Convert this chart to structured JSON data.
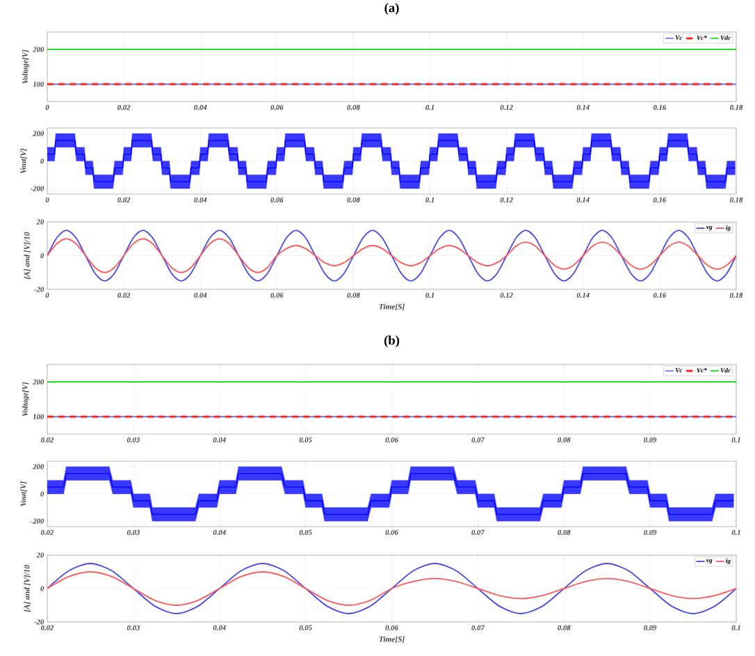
{
  "chart_data": [
    {
      "type": "line",
      "title": "(a)",
      "ylabel": "Voltage[V]",
      "x": [
        0,
        0.18
      ],
      "xlim": [
        0,
        0.18
      ],
      "xticks": [
        0,
        0.02,
        0.04,
        0.06,
        0.08,
        0.1,
        0.12,
        0.14,
        0.16,
        0.18
      ],
      "ylim": [
        50,
        250
      ],
      "yticks": [
        100,
        200
      ],
      "grid": true,
      "legend": "top right",
      "series": [
        {
          "name": "Vc",
          "color": "#6a7ff0",
          "values": [
            100,
            100
          ]
        },
        {
          "name": "Vc*",
          "color": "#ff2020",
          "values": [
            100,
            100
          ],
          "line_style": "dashed"
        },
        {
          "name": "Vdc",
          "color": "#22e022",
          "values": [
            200,
            200
          ]
        }
      ]
    },
    {
      "type": "line",
      "ylabel": "Vout[V]",
      "xlim": [
        0,
        0.18
      ],
      "xticks": [
        0,
        0.02,
        0.04,
        0.06,
        0.08,
        0.1,
        0.12,
        0.14,
        0.16,
        0.18
      ],
      "ylim": [
        -240,
        240
      ],
      "yticks": [
        -200,
        0,
        200
      ],
      "grid": true,
      "series": [
        {
          "color": "#0000ff",
          "x": [
            0,
            0.0019,
            0.0022,
            0.0072,
            0.0076,
            0.0097,
            0.01,
            0.0119,
            0.0122,
            0.0172,
            0.0176,
            0.0197,
            0.02,
            0.0219,
            0.0222,
            0.0272,
            0.0276,
            0.0297,
            0.03,
            0.0319,
            0.0322,
            0.0372,
            0.0376,
            0.0397,
            0.04,
            0.0419,
            0.0422,
            0.0472,
            0.0476,
            0.0497,
            0.05,
            0.0519,
            0.0522,
            0.0572,
            0.0576,
            0.0597,
            0.06,
            0.0619,
            0.0622,
            0.0672,
            0.0676,
            0.0697,
            0.07,
            0.0719,
            0.0722,
            0.0772,
            0.0776,
            0.0797,
            0.08,
            0.0819,
            0.0822,
            0.0872,
            0.0876,
            0.0897,
            0.09,
            0.0919,
            0.0922,
            0.0972,
            0.0976,
            0.0997,
            0.1,
            0.1019,
            0.1022,
            0.1072,
            0.1076,
            0.1097,
            0.11,
            0.1119,
            0.1122,
            0.1172,
            0.1176,
            0.1197,
            0.12,
            0.1219,
            0.1222,
            0.1272,
            0.1276,
            0.1297,
            0.13,
            0.1319,
            0.1322,
            0.1372,
            0.1376,
            0.1397,
            0.14,
            0.1419,
            0.1422,
            0.1472,
            0.1476,
            0.1497,
            0.15,
            0.1519,
            0.1522,
            0.1572,
            0.1576,
            0.1597,
            0.16,
            0.1619,
            0.1622,
            0.1672,
            0.1676,
            0.1697,
            0.17,
            0.1719,
            0.1722,
            0.1772,
            0.1776,
            0.1797
          ],
          "values": [
            50,
            50,
            150,
            150,
            50,
            50,
            -50,
            -50,
            -150,
            -150,
            -50,
            -50,
            50,
            50,
            150,
            150,
            50,
            50,
            -50,
            -50,
            -150,
            -150,
            -50,
            -50,
            50,
            50,
            150,
            150,
            50,
            50,
            -50,
            -50,
            -150,
            -150,
            -50,
            -50,
            50,
            50,
            150,
            150,
            50,
            50,
            -50,
            -50,
            -150,
            -150,
            -50,
            -50,
            50,
            50,
            150,
            150,
            50,
            50,
            -50,
            -50,
            -150,
            -150,
            -50,
            -50,
            50,
            50,
            150,
            150,
            50,
            50,
            -50,
            -50,
            -150,
            -150,
            -50,
            -50,
            50,
            50,
            150,
            150,
            50,
            50,
            -50,
            -50,
            -150,
            -150,
            -50,
            -50,
            50,
            50,
            150,
            150,
            50,
            50,
            -50,
            -50,
            -150,
            -150,
            -50,
            -50,
            50,
            50,
            150,
            150,
            50,
            50,
            -50,
            -50,
            -150,
            -150,
            -50,
            -50
          ],
          "lower": [
            0,
            0,
            100,
            100,
            0,
            0,
            -100,
            -100,
            -200,
            -200,
            -100,
            -100,
            0,
            0,
            100,
            100,
            0,
            0,
            -100,
            -100,
            -200,
            -200,
            -100,
            -100,
            0,
            0,
            100,
            100,
            0,
            0,
            -100,
            -100,
            -200,
            -200,
            -100,
            -100,
            0,
            0,
            100,
            100,
            0,
            0,
            -100,
            -100,
            -200,
            -200,
            -100,
            -100,
            0,
            0,
            100,
            100,
            0,
            0,
            -100,
            -100,
            -200,
            -200,
            -100,
            -100,
            0,
            0,
            100,
            100,
            0,
            0,
            -100,
            -100,
            -200,
            -200,
            -100,
            -100,
            0,
            0,
            100,
            100,
            0,
            0,
            -100,
            -100,
            -200,
            -200,
            -100,
            -100,
            0,
            0,
            100,
            100,
            0,
            0,
            -100,
            -100,
            -200,
            -200,
            -100,
            -100,
            0,
            0,
            100,
            100,
            0,
            0,
            -100,
            -100,
            -200,
            -200,
            -100,
            -100
          ],
          "upper": [
            100,
            100,
            200,
            200,
            100,
            100,
            0,
            0,
            -100,
            -100,
            0,
            0,
            100,
            100,
            200,
            200,
            100,
            100,
            0,
            0,
            -100,
            -100,
            0,
            0,
            100,
            100,
            200,
            200,
            100,
            100,
            0,
            0,
            -100,
            -100,
            0,
            0,
            100,
            100,
            200,
            200,
            100,
            100,
            0,
            0,
            -100,
            -100,
            0,
            0,
            100,
            100,
            200,
            200,
            100,
            100,
            0,
            0,
            -100,
            -100,
            0,
            0,
            100,
            100,
            200,
            200,
            100,
            100,
            0,
            0,
            -100,
            -100,
            0,
            0,
            100,
            100,
            200,
            200,
            100,
            100,
            0,
            0,
            -100,
            -100,
            0,
            0,
            100,
            100,
            200,
            200,
            100,
            100,
            0,
            0,
            -100,
            -100,
            0,
            0,
            100,
            100,
            200,
            200,
            100,
            100,
            0,
            0,
            -100,
            -100,
            0,
            0
          ]
        }
      ]
    },
    {
      "type": "line",
      "xlabel": "Time[S]",
      "ylabel": "[A] and [V]/10",
      "xlim": [
        0,
        0.18
      ],
      "xticks": [
        0,
        0.02,
        0.04,
        0.06,
        0.08,
        0.1,
        0.12,
        0.14,
        0.16,
        0.18
      ],
      "ylim": [
        -20,
        20
      ],
      "yticks": [
        -20,
        0,
        20
      ],
      "grid": true,
      "legend": "top right",
      "x": [
        0,
        0.0025,
        0.005,
        0.0075,
        0.01,
        0.0125,
        0.015,
        0.0175,
        0.02,
        0.0225,
        0.025,
        0.0275,
        0.03,
        0.0325,
        0.035,
        0.0375,
        0.04,
        0.0425,
        0.045,
        0.0475,
        0.05,
        0.0525,
        0.055,
        0.0575,
        0.06,
        0.0625,
        0.065,
        0.0675,
        0.07,
        0.0725,
        0.075,
        0.0775,
        0.08,
        0.0825,
        0.085,
        0.0875,
        0.09,
        0.0925,
        0.095,
        0.0975,
        0.1,
        0.1025,
        0.105,
        0.1075,
        0.11,
        0.1125,
        0.115,
        0.1175,
        0.12,
        0.1225,
        0.125,
        0.1275,
        0.13,
        0.1325,
        0.135,
        0.1375,
        0.14,
        0.1425,
        0.145,
        0.1475,
        0.15,
        0.1525,
        0.155,
        0.1575,
        0.16,
        0.1625,
        0.165,
        0.1675,
        0.17,
        0.1725,
        0.175,
        0.1775,
        0.18
      ],
      "series": [
        {
          "name": "vg",
          "color": "#4a4ae6",
          "values": [
            0,
            10.6,
            15,
            10.6,
            0,
            -10.6,
            -15,
            -10.6,
            0,
            10.6,
            15,
            10.6,
            0,
            -10.6,
            -15,
            -10.6,
            0,
            10.6,
            15,
            10.6,
            0,
            -10.6,
            -15,
            -10.6,
            0,
            10.6,
            15,
            10.6,
            0,
            -10.6,
            -15,
            -10.6,
            0,
            10.6,
            15,
            10.6,
            0,
            -10.6,
            -15,
            -10.6,
            0,
            10.6,
            15,
            10.6,
            0,
            -10.6,
            -15,
            -10.6,
            0,
            10.6,
            15,
            10.6,
            0,
            -10.6,
            -15,
            -10.6,
            0,
            10.6,
            15,
            10.6,
            0,
            -10.6,
            -15,
            -10.6,
            0,
            10.6,
            15,
            10.6,
            0,
            -10.6,
            -15,
            -10.6,
            0
          ]
        },
        {
          "name": "ig",
          "color": "#ff5a5a",
          "values": [
            0,
            7.1,
            10,
            7.1,
            0,
            -7.1,
            -10,
            -7.1,
            0,
            7.1,
            10,
            7.1,
            0,
            -7.1,
            -10,
            -7.1,
            0,
            7.1,
            10,
            7.1,
            0,
            -7.1,
            -10,
            -7.1,
            0,
            4.2,
            6,
            4.2,
            0,
            -4.2,
            -6,
            -4.2,
            0,
            4.2,
            6,
            4.2,
            0,
            -4.2,
            -6,
            -4.2,
            0,
            4.2,
            6,
            4.2,
            0,
            -4.2,
            -6,
            -4.2,
            0,
            5.7,
            8,
            5.7,
            0,
            -5.7,
            -8,
            -5.7,
            0,
            5.7,
            8,
            5.7,
            0,
            -5.7,
            -8,
            -5.7,
            0,
            5.7,
            8,
            5.7,
            0,
            -5.7,
            -8,
            -5.7,
            0
          ]
        }
      ]
    },
    {
      "type": "line",
      "title": "(b)",
      "ylabel": "Voltage[V]",
      "x": [
        0.02,
        0.1
      ],
      "xlim": [
        0.02,
        0.1
      ],
      "xticks": [
        0.02,
        0.03,
        0.04,
        0.05,
        0.06,
        0.07,
        0.08,
        0.09,
        0.1
      ],
      "ylim": [
        50,
        250
      ],
      "yticks": [
        100,
        200
      ],
      "grid": true,
      "legend": "top right",
      "series": [
        {
          "name": "Vc",
          "color": "#6a7ff0",
          "values": [
            100,
            100
          ]
        },
        {
          "name": "Vc*",
          "color": "#ff2020",
          "values": [
            100,
            100
          ],
          "line_style": "dashed"
        },
        {
          "name": "Vdc",
          "color": "#22e022",
          "values": [
            200,
            200
          ]
        }
      ]
    },
    {
      "type": "line",
      "ylabel": "Vout[V]",
      "xlim": [
        0.02,
        0.1
      ],
      "xticks": [
        0.02,
        0.03,
        0.04,
        0.05,
        0.06,
        0.07,
        0.08,
        0.09,
        0.1
      ],
      "ylim": [
        -240,
        240
      ],
      "yticks": [
        -200,
        0,
        200
      ],
      "grid": true,
      "series": [
        {
          "color": "#0000ff",
          "x": [
            0.02,
            0.0219,
            0.0222,
            0.0272,
            0.0276,
            0.0297,
            0.03,
            0.0319,
            0.0322,
            0.0372,
            0.0376,
            0.0397,
            0.04,
            0.0419,
            0.0422,
            0.0472,
            0.0476,
            0.0497,
            0.05,
            0.0519,
            0.0522,
            0.0572,
            0.0576,
            0.0597,
            0.06,
            0.0619,
            0.0622,
            0.0672,
            0.0676,
            0.0697,
            0.07,
            0.0719,
            0.0722,
            0.0772,
            0.0776,
            0.0797,
            0.08,
            0.0819,
            0.0822,
            0.0872,
            0.0876,
            0.0897,
            0.09,
            0.0919,
            0.0922,
            0.0972,
            0.0976,
            0.0997
          ],
          "values": [
            50,
            50,
            150,
            150,
            50,
            50,
            -50,
            -50,
            -150,
            -150,
            -50,
            -50,
            50,
            50,
            150,
            150,
            50,
            50,
            -50,
            -50,
            -150,
            -150,
            -50,
            -50,
            50,
            50,
            150,
            150,
            50,
            50,
            -50,
            -50,
            -150,
            -150,
            -50,
            -50,
            50,
            50,
            150,
            150,
            50,
            50,
            -50,
            -50,
            -150,
            -150,
            -50,
            -50
          ],
          "lower": [
            0,
            0,
            100,
            100,
            0,
            0,
            -100,
            -100,
            -200,
            -200,
            -100,
            -100,
            0,
            0,
            100,
            100,
            0,
            0,
            -100,
            -100,
            -200,
            -200,
            -100,
            -100,
            0,
            0,
            100,
            100,
            0,
            0,
            -100,
            -100,
            -200,
            -200,
            -100,
            -100,
            0,
            0,
            100,
            100,
            0,
            0,
            -100,
            -100,
            -200,
            -200,
            -100,
            -100
          ],
          "upper": [
            100,
            100,
            200,
            200,
            100,
            100,
            0,
            0,
            -100,
            -100,
            0,
            0,
            100,
            100,
            200,
            200,
            100,
            100,
            0,
            0,
            -100,
            -100,
            0,
            0,
            100,
            100,
            200,
            200,
            100,
            100,
            0,
            0,
            -100,
            -100,
            0,
            0,
            100,
            100,
            200,
            200,
            100,
            100,
            0,
            0,
            -100,
            -100,
            0,
            0
          ]
        }
      ]
    },
    {
      "type": "line",
      "xlabel": "Time[S]",
      "ylabel": "[A] and [V]/10",
      "xlim": [
        0.02,
        0.1
      ],
      "xticks": [
        0.02,
        0.03,
        0.04,
        0.05,
        0.06,
        0.07,
        0.08,
        0.09,
        0.1
      ],
      "ylim": [
        -20,
        20
      ],
      "yticks": [
        -20,
        0,
        20
      ],
      "grid": true,
      "legend": "top right",
      "x": [
        0.02,
        0.0225,
        0.025,
        0.0275,
        0.03,
        0.0325,
        0.035,
        0.0375,
        0.04,
        0.0425,
        0.045,
        0.0475,
        0.05,
        0.0525,
        0.055,
        0.0575,
        0.06,
        0.0625,
        0.065,
        0.0675,
        0.07,
        0.0725,
        0.075,
        0.0775,
        0.08,
        0.0825,
        0.085,
        0.0875,
        0.09,
        0.0925,
        0.095,
        0.0975,
        0.1
      ],
      "series": [
        {
          "name": "vg",
          "color": "#4a4ae6",
          "values": [
            0,
            10.6,
            15,
            10.6,
            0,
            -10.6,
            -15,
            -10.6,
            0,
            10.6,
            15,
            10.6,
            0,
            -10.6,
            -15,
            -10.6,
            0,
            10.6,
            15,
            10.6,
            0,
            -10.6,
            -15,
            -10.6,
            0,
            10.6,
            15,
            10.6,
            0,
            -10.6,
            -15,
            -10.6,
            0
          ]
        },
        {
          "name": "ig",
          "color": "#ff5a5a",
          "values": [
            0,
            7.1,
            10,
            7.1,
            0,
            -7.1,
            -10,
            -7.1,
            0,
            7.1,
            10,
            7.1,
            0,
            -7.1,
            -10,
            -7.1,
            0,
            4.2,
            6,
            4.2,
            0,
            -4.2,
            -6,
            -4.2,
            0,
            4.2,
            6,
            4.2,
            0,
            -4.2,
            -6,
            -4.2,
            0
          ]
        }
      ]
    }
  ]
}
